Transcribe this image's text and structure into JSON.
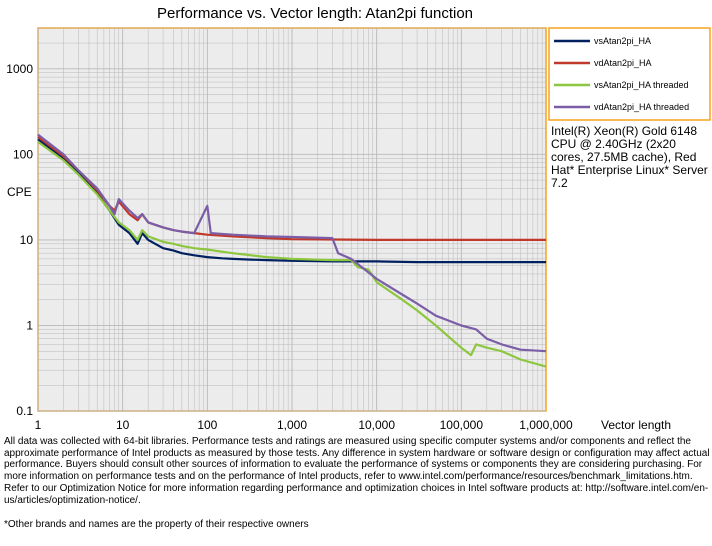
{
  "chart_data": {
    "type": "line",
    "title": "Performance vs. Vector length: Atan2pi function",
    "xlabel": "Vector length",
    "ylabel": "CPE",
    "x_scale": "log",
    "y_scale": "log",
    "xlim": [
      1,
      1000000
    ],
    "ylim": [
      0.1,
      3000
    ],
    "x_ticks": [
      1,
      10,
      100,
      1000,
      10000,
      100000,
      1000000
    ],
    "x_tick_labels": [
      "1",
      "10",
      "100",
      "1,000",
      "10,000",
      "100,000",
      "1,000,000"
    ],
    "y_ticks": [
      0.1,
      1,
      10,
      100,
      1000
    ],
    "y_tick_labels": [
      "0.1",
      "1",
      "10",
      "100",
      "1000"
    ],
    "grid": true,
    "legend_position": "top-right",
    "series": [
      {
        "name": "vsAtan2pi_HA",
        "color": "#002060",
        "points": [
          [
            1,
            150
          ],
          [
            2,
            90
          ],
          [
            3,
            60
          ],
          [
            5,
            35
          ],
          [
            7,
            22
          ],
          [
            9,
            15
          ],
          [
            12,
            12
          ],
          [
            15,
            9
          ],
          [
            17,
            12
          ],
          [
            20,
            10
          ],
          [
            30,
            8
          ],
          [
            40,
            7.5
          ],
          [
            50,
            7
          ],
          [
            70,
            6.6
          ],
          [
            100,
            6.3
          ],
          [
            150,
            6.1
          ],
          [
            200,
            6
          ],
          [
            300,
            5.9
          ],
          [
            500,
            5.8
          ],
          [
            1000,
            5.7
          ],
          [
            3000,
            5.6
          ],
          [
            10000,
            5.6
          ],
          [
            30000,
            5.5
          ],
          [
            100000,
            5.5
          ],
          [
            1000000,
            5.5
          ]
        ]
      },
      {
        "name": "vdAtan2pi_HA",
        "color": "#c0392b",
        "points": [
          [
            1,
            160
          ],
          [
            2,
            95
          ],
          [
            3,
            65
          ],
          [
            5,
            38
          ],
          [
            7,
            25
          ],
          [
            8,
            22
          ],
          [
            9,
            28
          ],
          [
            12,
            20
          ],
          [
            15,
            17
          ],
          [
            17,
            20
          ],
          [
            20,
            16
          ],
          [
            30,
            14
          ],
          [
            40,
            13
          ],
          [
            50,
            12.5
          ],
          [
            70,
            12
          ],
          [
            100,
            11.5
          ],
          [
            200,
            11
          ],
          [
            500,
            10.5
          ],
          [
            1000,
            10.2
          ],
          [
            3000,
            10.1
          ],
          [
            10000,
            10
          ],
          [
            100000,
            10
          ],
          [
            1000000,
            10
          ]
        ]
      },
      {
        "name": "vsAtan2pi_HA threaded",
        "color": "#8dc63f",
        "points": [
          [
            1,
            140
          ],
          [
            2,
            85
          ],
          [
            3,
            58
          ],
          [
            5,
            34
          ],
          [
            7,
            22
          ],
          [
            9,
            16
          ],
          [
            12,
            13
          ],
          [
            15,
            10
          ],
          [
            17,
            13
          ],
          [
            20,
            11
          ],
          [
            30,
            9.5
          ],
          [
            40,
            9
          ],
          [
            50,
            8.5
          ],
          [
            70,
            8
          ],
          [
            100,
            7.7
          ],
          [
            200,
            7
          ],
          [
            500,
            6.3
          ],
          [
            1000,
            6
          ],
          [
            3000,
            5.8
          ],
          [
            5000,
            5.8
          ],
          [
            6000,
            4.8
          ],
          [
            8000,
            4.5
          ],
          [
            10000,
            3.2
          ],
          [
            20000,
            2
          ],
          [
            30000,
            1.5
          ],
          [
            50000,
            1
          ],
          [
            100000,
            0.55
          ],
          [
            130000,
            0.45
          ],
          [
            150000,
            0.6
          ],
          [
            200000,
            0.55
          ],
          [
            300000,
            0.5
          ],
          [
            500000,
            0.4
          ],
          [
            1000000,
            0.33
          ]
        ]
      },
      {
        "name": "vdAtan2pi_HA threaded",
        "color": "#7b5ea7",
        "points": [
          [
            1,
            170
          ],
          [
            2,
            100
          ],
          [
            3,
            65
          ],
          [
            5,
            40
          ],
          [
            7,
            25
          ],
          [
            8,
            20
          ],
          [
            9,
            30
          ],
          [
            12,
            22
          ],
          [
            15,
            18
          ],
          [
            17,
            20
          ],
          [
            20,
            16
          ],
          [
            30,
            14
          ],
          [
            40,
            13
          ],
          [
            50,
            12.5
          ],
          [
            70,
            12
          ],
          [
            100,
            25
          ],
          [
            110,
            12
          ],
          [
            200,
            11.5
          ],
          [
            500,
            11
          ],
          [
            1000,
            10.8
          ],
          [
            3000,
            10.5
          ],
          [
            3500,
            7
          ],
          [
            5000,
            6
          ],
          [
            10000,
            3.5
          ],
          [
            20000,
            2.3
          ],
          [
            30000,
            1.8
          ],
          [
            50000,
            1.3
          ],
          [
            100000,
            1
          ],
          [
            150000,
            0.9
          ],
          [
            200000,
            0.7
          ],
          [
            300000,
            0.6
          ],
          [
            500000,
            0.52
          ],
          [
            1000000,
            0.5
          ]
        ]
      }
    ]
  },
  "cpu_note": "Intel(R) Xeon(R) Gold 6148 CPU @ 2.40GHz (2x20 cores, 27.5MB cache), Red Hat* Enterprise Linux* Server 7.2",
  "disclaimer": "All data was collected with 64-bit libraries. Performance tests and ratings are measured using specific computer systems and/or components and reflect the approximate performance of Intel products as measured by those tests. Any difference in system hardware or software design or configuration may affect actual performance. Buyers should consult other sources of information to evaluate the performance of systems or components they are considering purchasing. For more information on performance tests and on the performance of Intel products, refer to www.intel.com/performance/resources/benchmark_limitations.htm. Refer to our Optimization Notice for more information regarding performance and optimization choices in Intel software products at: http://software.intel.com/en-us/articles/optimization-notice/.",
  "footnote": "*Other brands and names are the property of their respective owners",
  "colors": {
    "frame": "#f7a21b",
    "plot_bg": "#ececec",
    "grid": "#b8b8b8"
  }
}
